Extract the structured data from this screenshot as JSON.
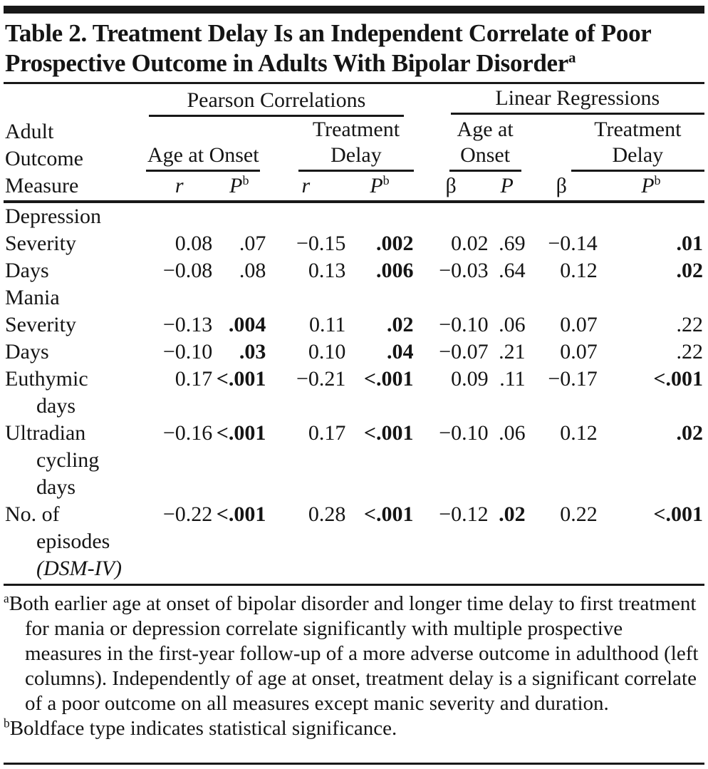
{
  "title": {
    "line1": "Table 2. Treatment Delay Is an Independent Correlate of Poor",
    "line2": "Prospective Outcome in Adults With Bipolar Disorder",
    "footnote_marker": "a"
  },
  "table": {
    "stub_lines": [
      "Adult",
      "Outcome",
      "Measure"
    ],
    "groups": [
      {
        "label": "Pearson Correlations",
        "subgroups": [
          {
            "label": "Age at Onset"
          },
          {
            "label": "Treatment\nDelay"
          }
        ]
      },
      {
        "label": "Linear Regressions",
        "subgroups": [
          {
            "label": "Age at\nOnset"
          },
          {
            "label": "Treatment\nDelay"
          }
        ]
      }
    ],
    "columns": [
      {
        "symbol": "r",
        "sup": ""
      },
      {
        "symbol": "P",
        "sup": "b"
      },
      {
        "symbol": "r",
        "sup": ""
      },
      {
        "symbol": "P",
        "sup": "b"
      },
      {
        "symbol": "β",
        "sup": ""
      },
      {
        "symbol": "P",
        "sup": ""
      },
      {
        "symbol": "β",
        "sup": ""
      },
      {
        "symbol": "P",
        "sup": "b"
      }
    ],
    "rows": [
      {
        "label": "Depression",
        "section": true
      },
      {
        "label": "Severity",
        "indent": true,
        "values": [
          "0.08",
          ".07",
          "−0.15",
          ".002",
          "0.02",
          ".69",
          "−0.14",
          ".01"
        ],
        "sig_cols": [
          3,
          7
        ]
      },
      {
        "label": "Days",
        "indent": true,
        "values": [
          "−0.08",
          ".08",
          "0.13",
          ".006",
          "−0.03",
          ".64",
          "0.12",
          ".02"
        ],
        "sig_cols": [
          3,
          7
        ]
      },
      {
        "label": "Mania",
        "section": true
      },
      {
        "label": "Severity",
        "indent": true,
        "values": [
          "−0.13",
          ".004",
          "0.11",
          ".02",
          "−0.10",
          ".06",
          "0.07",
          ".22"
        ],
        "sig_cols": [
          1,
          3
        ]
      },
      {
        "label": "Days",
        "indent": true,
        "values": [
          "−0.10",
          ".03",
          "0.10",
          ".04",
          "−0.07",
          ".21",
          "0.07",
          ".22"
        ],
        "sig_cols": [
          1,
          3
        ]
      },
      {
        "label": "Euthymic days",
        "label_lines": [
          "Euthymic",
          "days"
        ],
        "values": [
          "0.17",
          "<.001",
          "−0.21",
          "<.001",
          "0.09",
          ".11",
          "−0.17",
          "<.001"
        ],
        "sig_cols": [
          1,
          3,
          7
        ]
      },
      {
        "label": "Ultradian cycling days",
        "label_lines": [
          "Ultradian",
          "cycling",
          "days"
        ],
        "values": [
          "−0.16",
          "<.001",
          "0.17",
          "<.001",
          "−0.10",
          ".06",
          "0.12",
          ".02"
        ],
        "sig_cols": [
          1,
          3,
          7
        ]
      },
      {
        "label": "No. of episodes (DSM-IV)",
        "label_lines": [
          "No. of",
          "episodes",
          "(DSM-IV)"
        ],
        "values": [
          "−0.22",
          "<.001",
          "0.28",
          "<.001",
          "−0.12",
          ".02",
          "0.22",
          "<.001"
        ],
        "sig_cols": [
          1,
          3,
          5,
          7
        ]
      }
    ]
  },
  "footnotes": [
    {
      "marker": "a",
      "text": "Both earlier age at onset of bipolar disorder and longer time delay to first treatment for mania or depression correlate significantly with multiple prospective measures in the first-year follow-up of a more adverse outcome in adulthood (left columns). Independently of age at onset, treatment delay is a significant correlate of a poor outcome on all measures except manic severity and duration."
    },
    {
      "marker": "b",
      "text": "Boldface type indicates statistical significance."
    }
  ]
}
